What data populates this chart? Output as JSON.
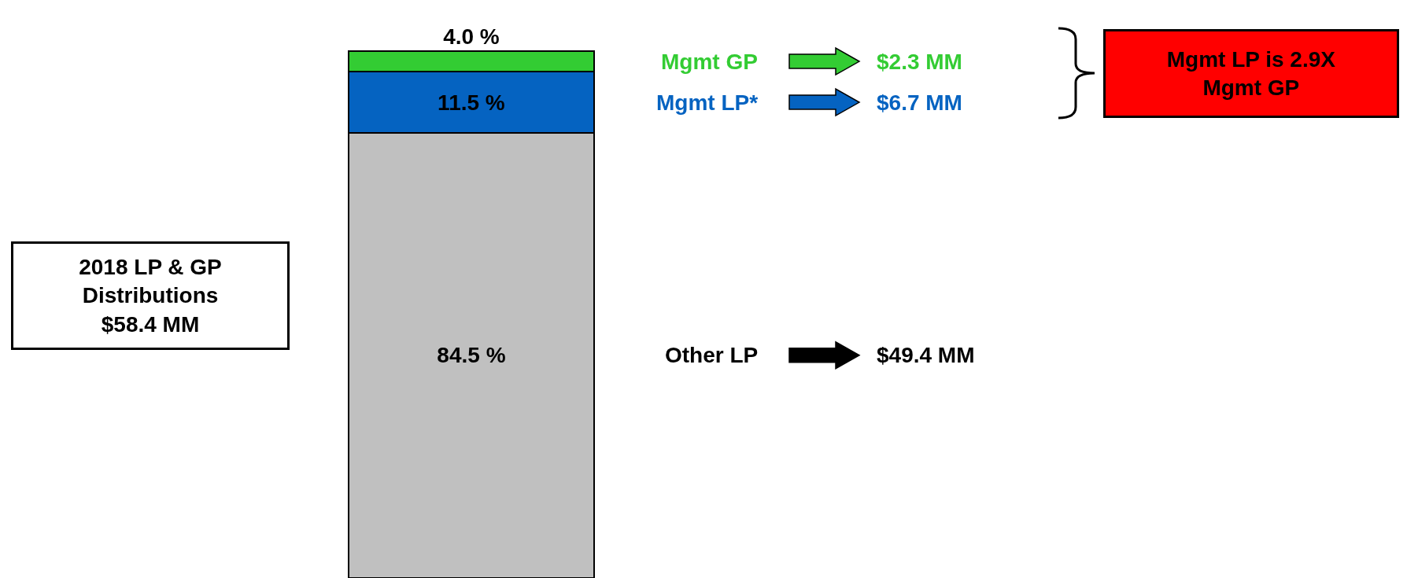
{
  "chart_data": {
    "type": "bar",
    "stacked": true,
    "categories": [
      null
    ],
    "series": [
      {
        "name": "Other LP",
        "color": "#c0c0c0",
        "values": [
          84.5
        ],
        "value_labels": [
          "84.5 %"
        ]
      },
      {
        "name": "Mgmt LP*",
        "color": "#0563c1",
        "values": [
          11.5
        ],
        "value_labels": [
          "11.5 %"
        ]
      },
      {
        "name": "Mgmt GP",
        "color": "#33cc33",
        "values": [
          4.0
        ],
        "value_labels": [
          "4.0 %"
        ]
      }
    ],
    "annotations": [
      "$49.4 MM",
      "$6.7 MM",
      "$2.3 MM",
      "2018 LP & GP\nDistributions\n$58.4 MM",
      "Mgmt LP is 2.9X\nMgmt GP"
    ],
    "legend": "right"
  }
}
